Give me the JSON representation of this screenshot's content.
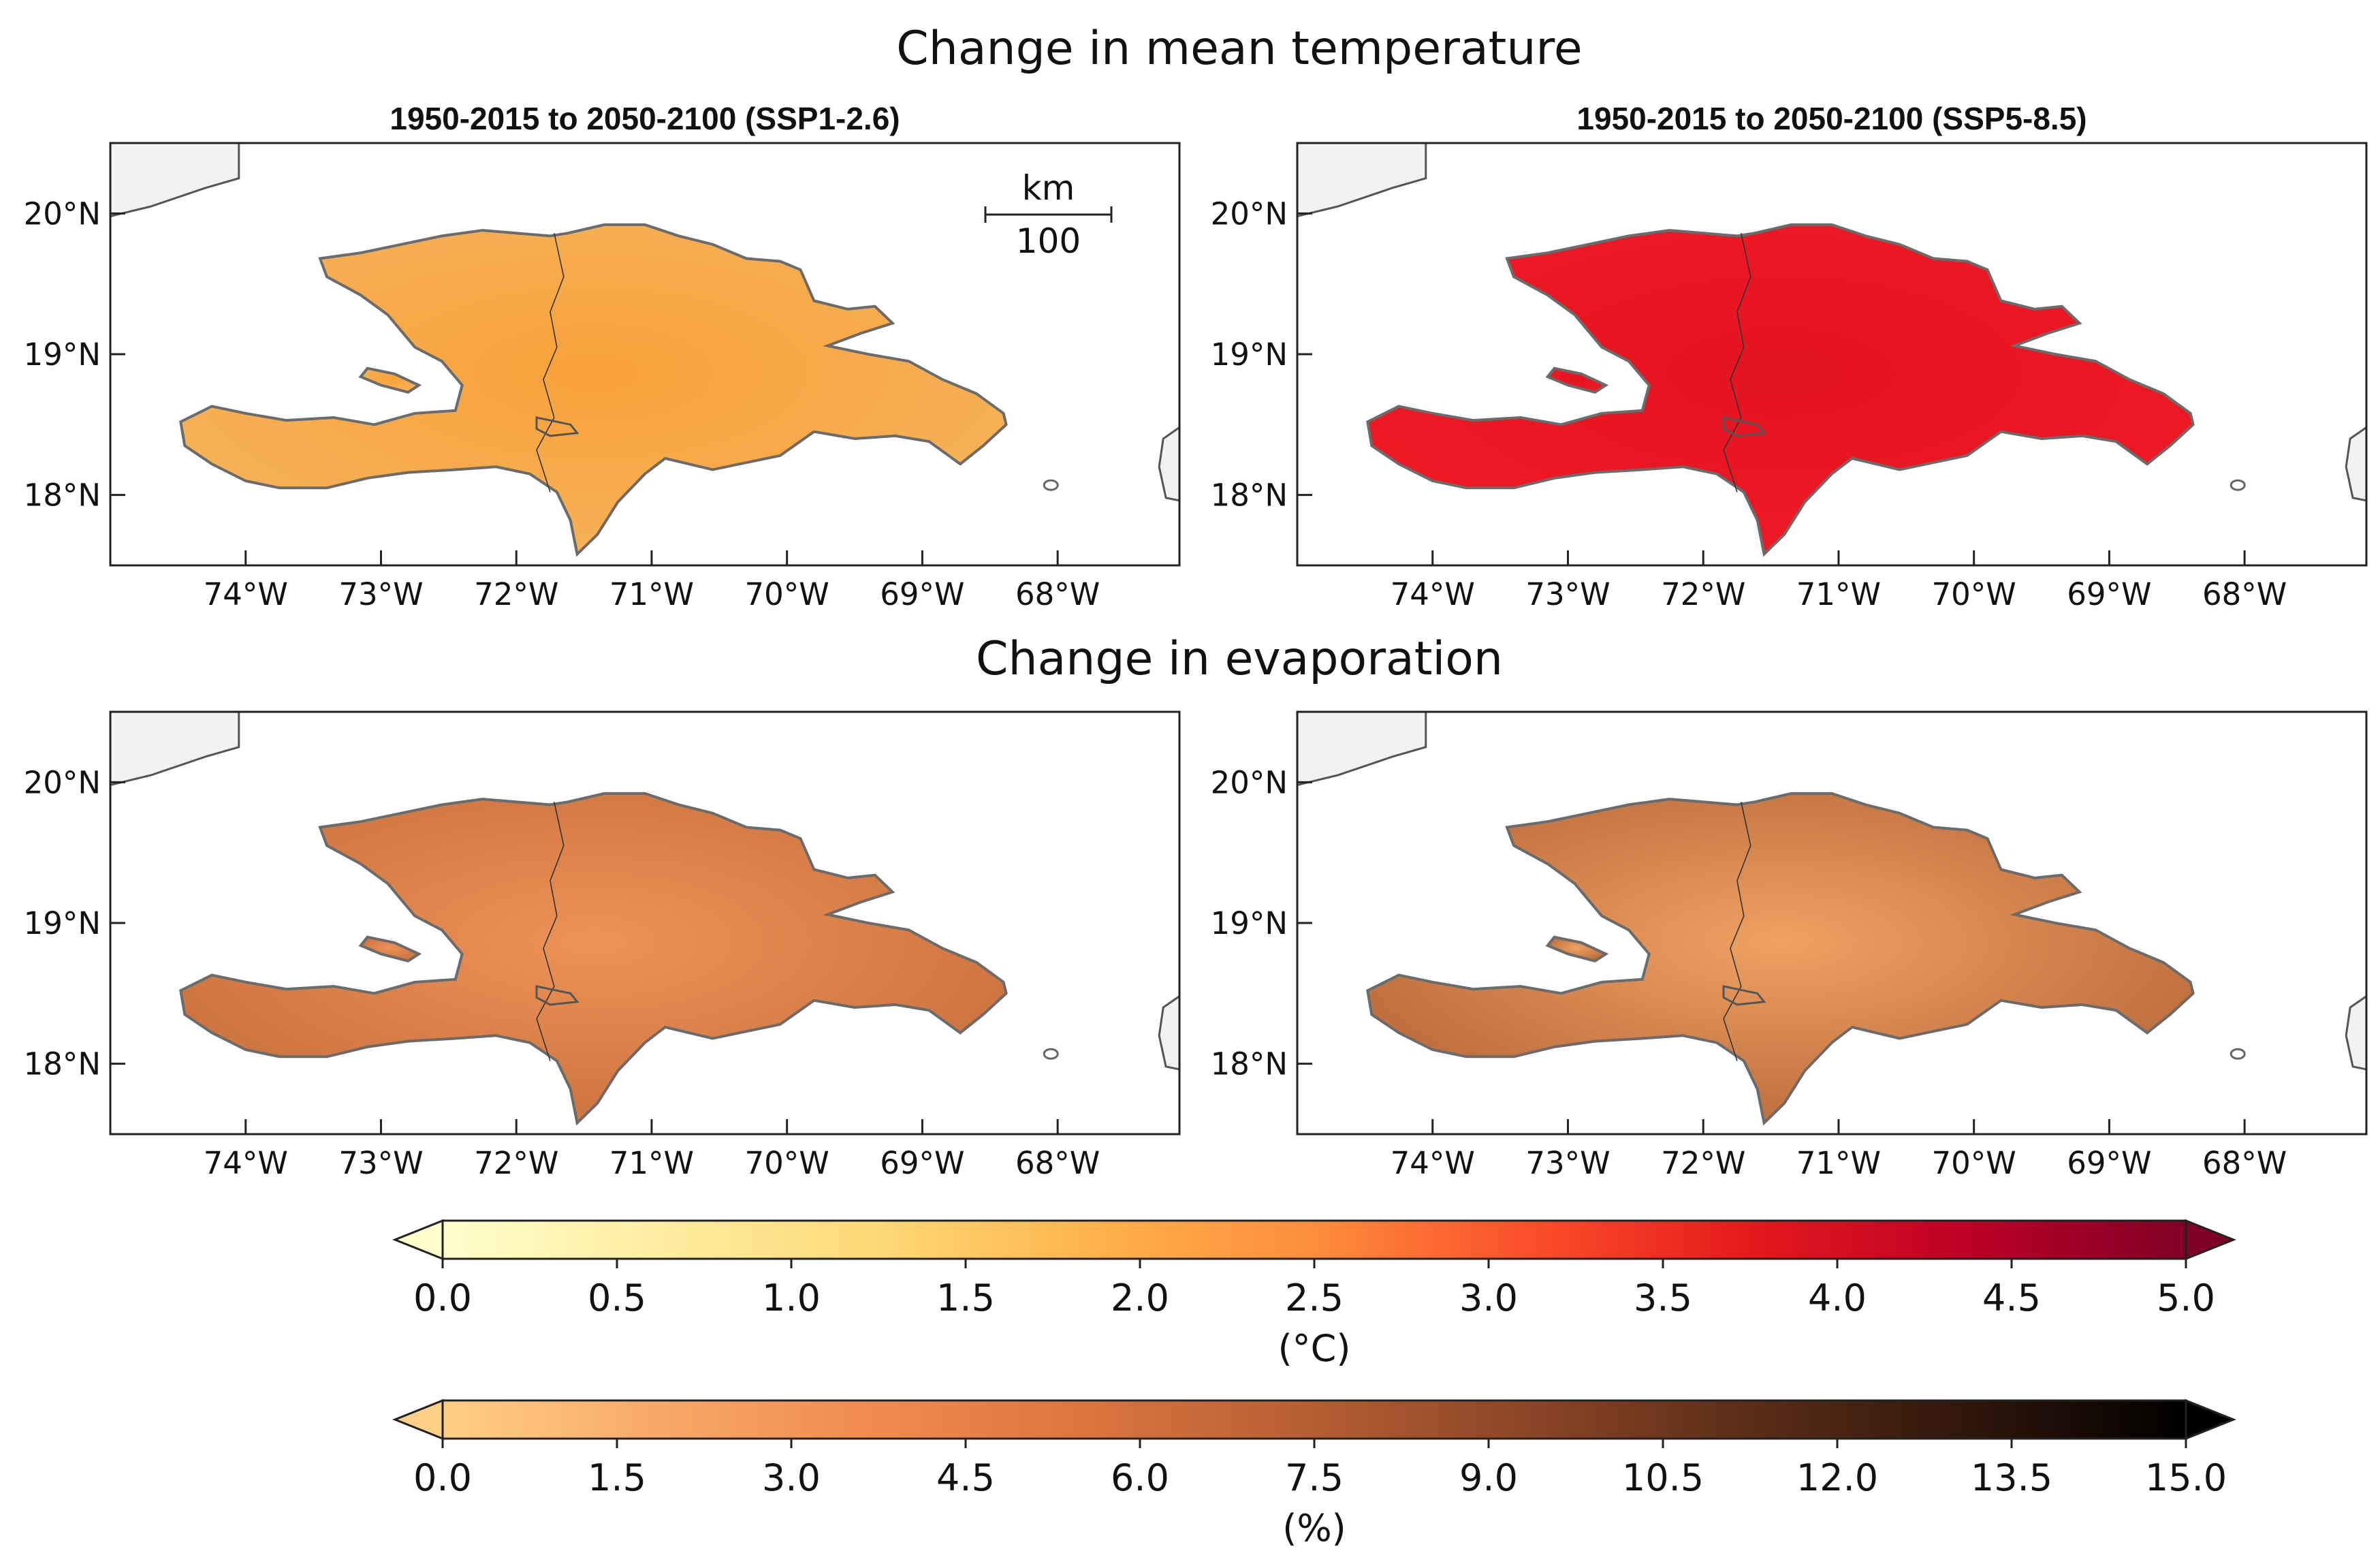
{
  "figure": {
    "titles": {
      "temperature": "Change in mean temperature",
      "evaporation": "Change in evaporation"
    }
  },
  "panels": [
    {
      "id": "temp-ssp126",
      "row": "temperature",
      "subtitle": "1950-2015 to 2050-2100 (SSP1-2.6)",
      "fill": "#f9a13a",
      "border_fill": "#f6b45c",
      "show_scalebar": true
    },
    {
      "id": "temp-ssp585",
      "row": "temperature",
      "subtitle": "1950-2015 to 2050-2100 (SSP5-8.5)",
      "fill": "#e41321",
      "border_fill": "#f01a24",
      "show_scalebar": false
    },
    {
      "id": "evap-ssp126",
      "row": "evaporation",
      "subtitle": "",
      "fill": "#ee9256",
      "border_fill": "#c66e3d",
      "show_scalebar": false
    },
    {
      "id": "evap-ssp585",
      "row": "evaporation",
      "subtitle": "",
      "fill": "#f0a163",
      "border_fill": "#b56536",
      "show_scalebar": false
    }
  ],
  "axes": {
    "lon_ticks": [
      "74°W",
      "73°W",
      "72°W",
      "71°W",
      "70°W",
      "69°W",
      "68°W"
    ],
    "lat_ticks": [
      "20°N",
      "19°N",
      "18°N"
    ]
  },
  "scalebar": {
    "unit": "km",
    "value": "100"
  },
  "colorbars": [
    {
      "id": "temperature",
      "label": "(°C)",
      "ticks": [
        "0.0",
        "0.5",
        "1.0",
        "1.5",
        "2.0",
        "2.5",
        "3.0",
        "3.5",
        "4.0",
        "4.5",
        "5.0"
      ],
      "range": [
        0.0,
        5.0
      ],
      "colormap": [
        "#ffffcc",
        "#ffeda0",
        "#fed976",
        "#feb24c",
        "#fd8d3c",
        "#fc4e2a",
        "#e31a1c",
        "#bd0026",
        "#800026"
      ],
      "extend": "both"
    },
    {
      "id": "evaporation",
      "label": "(%)",
      "ticks": [
        "0.0",
        "1.5",
        "3.0",
        "4.5",
        "6.0",
        "7.5",
        "9.0",
        "10.5",
        "12.0",
        "13.5",
        "15.0"
      ],
      "range": [
        0.0,
        15.0
      ],
      "colormap": [
        "#ffcf87",
        "#f8a868",
        "#ef8a4f",
        "#d9753f",
        "#b55d33",
        "#8a4526",
        "#5b2d18",
        "#2f160b",
        "#000000"
      ],
      "extend": "both"
    }
  ]
}
